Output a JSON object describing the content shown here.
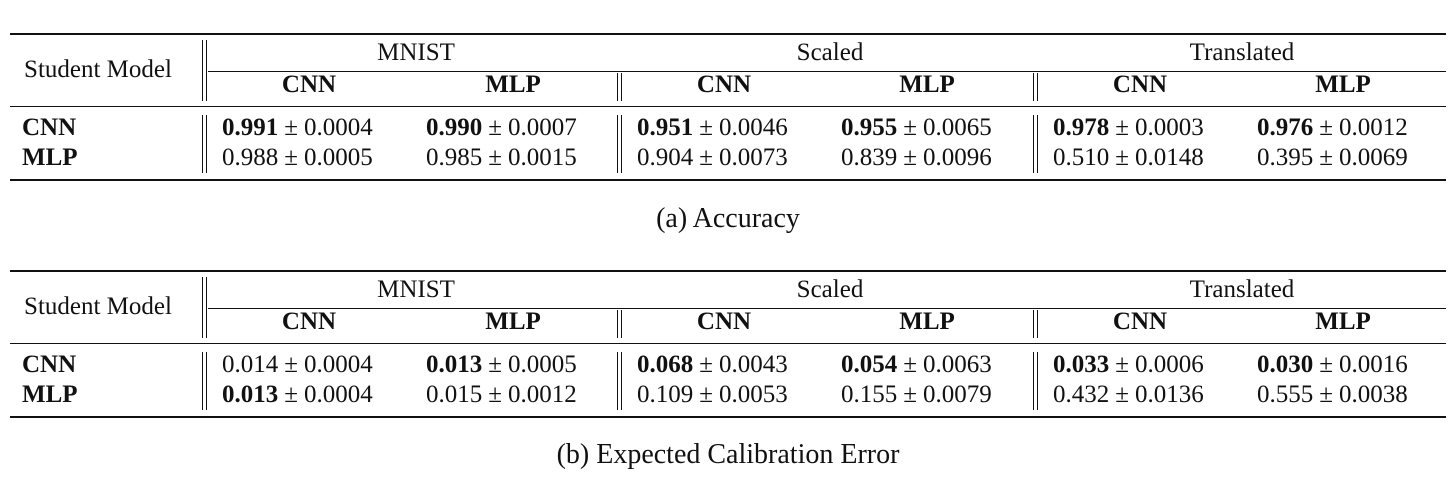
{
  "tables": [
    {
      "caption": "(a) Accuracy",
      "row_header": "Student Model",
      "groups": [
        "MNIST",
        "Scaled",
        "Translated"
      ],
      "subheaders": [
        "CNN",
        "MLP",
        "CNN",
        "MLP",
        "CNN",
        "MLP"
      ],
      "pm": "±",
      "rows": [
        {
          "label": "CNN",
          "cells": [
            {
              "mean": "0.991",
              "std": "0.0004",
              "bold": true
            },
            {
              "mean": "0.990",
              "std": "0.0007",
              "bold": true
            },
            {
              "mean": "0.951",
              "std": "0.0046",
              "bold": true
            },
            {
              "mean": "0.955",
              "std": "0.0065",
              "bold": true
            },
            {
              "mean": "0.978",
              "std": "0.0003",
              "bold": true
            },
            {
              "mean": "0.976",
              "std": "0.0012",
              "bold": true
            }
          ]
        },
        {
          "label": "MLP",
          "cells": [
            {
              "mean": "0.988",
              "std": "0.0005",
              "bold": false
            },
            {
              "mean": "0.985",
              "std": "0.0015",
              "bold": false
            },
            {
              "mean": "0.904",
              "std": "0.0073",
              "bold": false
            },
            {
              "mean": "0.839",
              "std": "0.0096",
              "bold": false
            },
            {
              "mean": "0.510",
              "std": "0.0148",
              "bold": false
            },
            {
              "mean": "0.395",
              "std": "0.0069",
              "bold": false
            }
          ]
        }
      ]
    },
    {
      "caption": "(b) Expected Calibration Error",
      "row_header": "Student Model",
      "groups": [
        "MNIST",
        "Scaled",
        "Translated"
      ],
      "subheaders": [
        "CNN",
        "MLP",
        "CNN",
        "MLP",
        "CNN",
        "MLP"
      ],
      "pm": "±",
      "rows": [
        {
          "label": "CNN",
          "cells": [
            {
              "mean": "0.014",
              "std": "0.0004",
              "bold": false
            },
            {
              "mean": "0.013",
              "std": "0.0005",
              "bold": true
            },
            {
              "mean": "0.068",
              "std": "0.0043",
              "bold": true
            },
            {
              "mean": "0.054",
              "std": "0.0063",
              "bold": true
            },
            {
              "mean": "0.033",
              "std": "0.0006",
              "bold": true
            },
            {
              "mean": "0.030",
              "std": "0.0016",
              "bold": true
            }
          ]
        },
        {
          "label": "MLP",
          "cells": [
            {
              "mean": "0.013",
              "std": "0.0004",
              "bold": true
            },
            {
              "mean": "0.015",
              "std": "0.0012",
              "bold": false
            },
            {
              "mean": "0.109",
              "std": "0.0053",
              "bold": false
            },
            {
              "mean": "0.155",
              "std": "0.0079",
              "bold": false
            },
            {
              "mean": "0.432",
              "std": "0.0136",
              "bold": false
            },
            {
              "mean": "0.555",
              "std": "0.0038",
              "bold": false
            }
          ]
        }
      ]
    }
  ]
}
